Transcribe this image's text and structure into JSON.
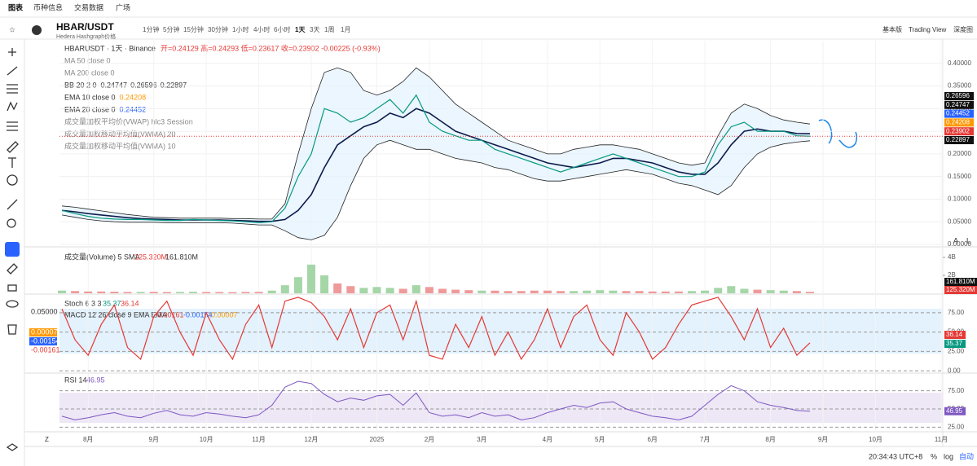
{
  "nav": {
    "tabs": [
      "图表",
      "币种信息",
      "交易数据",
      "广场"
    ]
  },
  "toolbar": {
    "symbol": "HBAR/USDT",
    "subtitle": "Hedera Hashgraph价格",
    "intervals": [
      "1分钟",
      "5分钟",
      "15分钟",
      "30分钟",
      "1小时",
      "4小时",
      "6小时",
      "1天",
      "3天",
      "1周",
      "1月"
    ],
    "views": [
      "基本版",
      "Trading View",
      "深度图"
    ]
  },
  "chart_data": {
    "type": "line",
    "title": "HBARUSDT · 1天 · Binance",
    "ohlc_text": "开=0.24129 高=0.24293 低=0.23617 收=0.23902 -0.00225 (-0.93%)",
    "legend": [
      {
        "label": "MA 50 close 0"
      },
      {
        "label": "MA 200 close 0"
      },
      {
        "label": "BB 20 2 0",
        "values": [
          0.24747,
          0.26596,
          0.22897
        ]
      },
      {
        "label": "EMA 10 close 0",
        "values": [
          0.24208
        ]
      },
      {
        "label": "EMA 20 close 0",
        "values": [
          0.24452
        ]
      },
      {
        "label": "成交量加权平均价(VWAP) hlc3 Session"
      },
      {
        "label": "成交量加权移动平均值(VWMA) 20"
      },
      {
        "label": "成交量加权移动平均值(VWMA) 10"
      }
    ],
    "categories": [
      null,
      null,
      "8月",
      null,
      null,
      null,
      null,
      "9月",
      null,
      null,
      null,
      "10月",
      null,
      null,
      null,
      "11月",
      null,
      null,
      null,
      "12月",
      null,
      null,
      null,
      null,
      "2025",
      null,
      null,
      null,
      "2月",
      null,
      null,
      null,
      "3月",
      null,
      null,
      null,
      null,
      "4月",
      null,
      null,
      null,
      "5月",
      null,
      null,
      null,
      "6月",
      null,
      null,
      null,
      "7月",
      null,
      null,
      null,
      null,
      "8月",
      null,
      null,
      null,
      "9月",
      null,
      null,
      null,
      "10月",
      null,
      null,
      null,
      null,
      "11月"
    ],
    "color": "#089981",
    "values": [
      0.075,
      0.068,
      0.062,
      0.058,
      0.056,
      0.055,
      0.055,
      0.054,
      0.053,
      0.053,
      0.055,
      0.054,
      0.053,
      0.052,
      0.05,
      0.048,
      0.05,
      0.08,
      0.15,
      0.2,
      0.3,
      0.29,
      0.27,
      0.28,
      0.3,
      0.32,
      0.29,
      0.33,
      0.27,
      0.25,
      0.24,
      0.23,
      0.23,
      0.21,
      0.2,
      0.19,
      0.18,
      0.17,
      0.16,
      0.17,
      0.18,
      0.19,
      0.2,
      0.19,
      0.18,
      0.17,
      0.16,
      0.15,
      0.15,
      0.16,
      0.22,
      0.26,
      0.27,
      0.25,
      0.25,
      0.25,
      0.24,
      0.23902,
      null,
      null,
      null,
      null,
      null,
      null,
      null,
      null,
      null,
      null
    ],
    "series": [
      {
        "name": "EMA 20 close 0",
        "color": "#0d1b4c",
        "values": [
          0.075,
          0.072,
          0.068,
          0.065,
          0.062,
          0.059,
          0.057,
          0.056,
          0.055,
          0.054,
          0.054,
          0.054,
          0.054,
          0.053,
          0.052,
          0.051,
          0.051,
          0.055,
          0.075,
          0.11,
          0.17,
          0.22,
          0.24,
          0.26,
          0.27,
          0.29,
          0.28,
          0.3,
          0.29,
          0.27,
          0.25,
          0.24,
          0.23,
          0.22,
          0.21,
          0.2,
          0.19,
          0.18,
          0.175,
          0.17,
          0.175,
          0.18,
          0.19,
          0.19,
          0.185,
          0.18,
          0.17,
          0.16,
          0.155,
          0.155,
          0.18,
          0.22,
          0.25,
          0.255,
          0.25,
          0.25,
          0.245,
          0.24452,
          null,
          null,
          null,
          null,
          null,
          null,
          null,
          null,
          null,
          null
        ]
      }
    ],
    "bands": {
      "color": "#222222",
      "upper": [
        0.085,
        0.082,
        0.078,
        0.074,
        0.07,
        0.066,
        0.063,
        0.06,
        0.059,
        0.058,
        0.058,
        0.058,
        0.058,
        0.057,
        0.057,
        0.056,
        0.056,
        0.09,
        0.2,
        0.3,
        0.38,
        0.39,
        0.38,
        0.34,
        0.33,
        0.34,
        0.36,
        0.39,
        0.37,
        0.34,
        0.31,
        0.29,
        0.27,
        0.25,
        0.23,
        0.22,
        0.21,
        0.2,
        0.2,
        0.21,
        0.215,
        0.22,
        0.22,
        0.215,
        0.21,
        0.2,
        0.19,
        0.18,
        0.175,
        0.18,
        0.24,
        0.29,
        0.31,
        0.3,
        0.285,
        0.275,
        0.27,
        0.26596,
        null,
        null,
        null,
        null,
        null,
        null,
        null,
        null,
        null,
        null
      ],
      "lower": [
        0.065,
        0.06,
        0.055,
        0.052,
        0.05,
        0.049,
        0.049,
        0.049,
        0.048,
        0.048,
        0.048,
        0.048,
        0.048,
        0.047,
        0.045,
        0.043,
        0.043,
        0.03,
        0.015,
        0.01,
        0.02,
        0.06,
        0.13,
        0.19,
        0.22,
        0.23,
        0.22,
        0.21,
        0.21,
        0.2,
        0.19,
        0.185,
        0.18,
        0.17,
        0.165,
        0.155,
        0.145,
        0.14,
        0.14,
        0.145,
        0.15,
        0.155,
        0.16,
        0.165,
        0.16,
        0.155,
        0.145,
        0.135,
        0.13,
        0.12,
        0.11,
        0.13,
        0.17,
        0.2,
        0.215,
        0.222,
        0.226,
        0.22897,
        null,
        null,
        null,
        null,
        null,
        null,
        null,
        null,
        null,
        null
      ]
    },
    "ylim": [
      0,
      0.45
    ],
    "yticks": [
      {
        "value": 0,
        "label": "0.00000"
      },
      {
        "value": 0.05,
        "label": "0.05000"
      },
      {
        "value": 0.1,
        "label": "0.10000"
      },
      {
        "value": 0.15,
        "label": "0.15000"
      },
      {
        "value": 0.2,
        "label": "0.20000"
      },
      {
        "value": 0.25,
        "label": "0.25000"
      },
      {
        "value": 0.3,
        "label": "0.30000"
      },
      {
        "value": 0.35,
        "label": "0.35000"
      },
      {
        "value": 0.4,
        "label": "0.40000"
      }
    ],
    "volume": {
      "label": "成交量(Volume) 5 SMA",
      "sma": {
        "value": 125320000,
        "label": "125.320M"
      },
      "last": {
        "value": 161810000,
        "label": "161.810M"
      },
      "values": [
        300000000,
        250000000,
        200000000,
        200000000,
        180000000,
        150000000,
        150000000,
        160000000,
        140000000,
        150000000,
        170000000,
        150000000,
        140000000,
        130000000,
        150000000,
        160000000,
        300000000,
        900000000,
        1800000000,
        3200000000,
        2000000000,
        1100000000,
        800000000,
        600000000,
        700000000,
        600000000,
        500000000,
        900000000,
        700000000,
        500000000,
        400000000,
        350000000,
        300000000,
        300000000,
        250000000,
        250000000,
        300000000,
        300000000,
        250000000,
        250000000,
        300000000,
        350000000,
        300000000,
        250000000,
        250000000,
        200000000,
        200000000,
        200000000,
        250000000,
        300000000,
        600000000,
        800000000,
        500000000,
        400000000,
        350000000,
        300000000,
        250000000,
        161810000,
        null,
        null,
        null,
        null,
        null,
        null,
        null,
        null,
        null,
        null
      ],
      "ylim": [
        0,
        5000000000
      ],
      "yticks": [
        {
          "value": 2000000000,
          "label": "2B"
        },
        {
          "value": 4000000000,
          "label": "4B"
        }
      ]
    },
    "oscillator": {
      "stoch_label": "Stoch 6 3 3",
      "stoch_values": [
        35.37,
        36.14
      ],
      "macd_label": "MACD 12 26 close 9 EMA EMA",
      "macd_values": [
        -0.00161,
        -0.00154,
        7e-05
      ],
      "macd_axis_label": "0.05000",
      "color": "#e53935",
      "values": [
        80,
        40,
        20,
        60,
        85,
        30,
        15,
        70,
        90,
        50,
        20,
        75,
        40,
        15,
        60,
        85,
        30,
        90,
        95,
        88,
        70,
        40,
        80,
        30,
        75,
        85,
        40,
        90,
        20,
        15,
        60,
        30,
        70,
        20,
        50,
        15,
        40,
        80,
        30,
        70,
        85,
        40,
        20,
        75,
        50,
        15,
        30,
        60,
        85,
        90,
        95,
        70,
        40,
        80,
        30,
        55,
        20,
        36.14,
        null,
        null,
        null,
        null,
        null,
        null,
        null,
        null,
        null,
        null
      ],
      "ylim": [
        -3,
        98
      ],
      "yticks": [
        {
          "value": 0,
          "label": "0.00"
        },
        {
          "value": 25,
          "label": "25.00"
        },
        {
          "value": 50,
          "label": "50.00"
        },
        {
          "value": 75,
          "label": "75.00"
        }
      ]
    },
    "rsi": {
      "label": "RSI 14",
      "last": 46.95,
      "color": "#7e57c2",
      "values": [
        40,
        35,
        38,
        42,
        45,
        40,
        38,
        44,
        48,
        42,
        40,
        45,
        43,
        40,
        38,
        42,
        55,
        80,
        88,
        85,
        70,
        60,
        65,
        62,
        68,
        70,
        55,
        72,
        45,
        40,
        42,
        38,
        45,
        40,
        42,
        35,
        38,
        45,
        50,
        55,
        52,
        58,
        60,
        50,
        45,
        40,
        38,
        35,
        40,
        55,
        70,
        82,
        75,
        60,
        55,
        52,
        48,
        46.95,
        null,
        null,
        null,
        null,
        null,
        null,
        null,
        null,
        null,
        null
      ],
      "ylim": [
        22,
        97
      ],
      "yticks": [
        {
          "value": 25,
          "label": "25.00"
        },
        {
          "value": 50,
          "label": "50.00"
        },
        {
          "value": 75,
          "label": "75.00"
        }
      ]
    }
  },
  "statusbar": {
    "time": "20:34:43 UTC+8",
    "percent": "%",
    "log": "log",
    "auto": "自动",
    "z": "Z",
    "scale_a": "A",
    "scale_l": "L"
  }
}
